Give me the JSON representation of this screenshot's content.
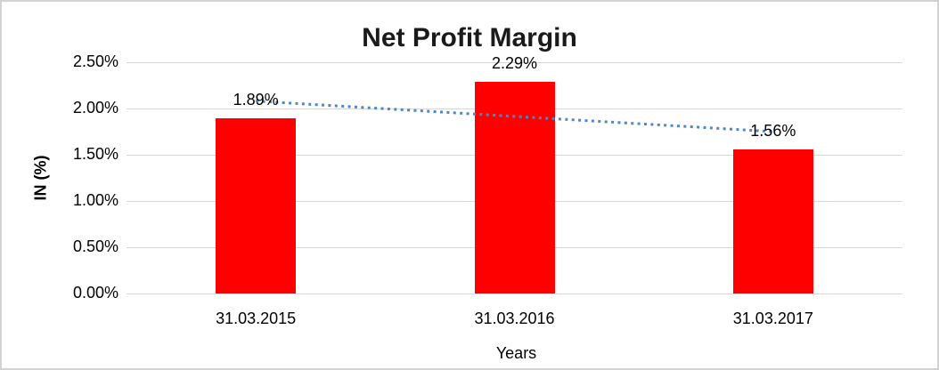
{
  "chart_data": {
    "type": "bar",
    "title": "Net Profit Margin",
    "categories": [
      "31.03.2015",
      "31.03.2016",
      "31.03.2017"
    ],
    "values": [
      1.89,
      2.29,
      1.56
    ],
    "data_labels": [
      "1.89%",
      "2.29%",
      "1.56%"
    ],
    "xlabel": "Years",
    "ylabel": "IN (%)",
    "y_ticks": [
      "0.00%",
      "0.50%",
      "1.00%",
      "1.50%",
      "2.00%",
      "2.50%"
    ],
    "y_tick_values": [
      0,
      0.5,
      1.0,
      1.5,
      2.0,
      2.5
    ],
    "ylim": [
      0,
      2.5
    ],
    "grid": true,
    "legend": "none",
    "bar_color": "#ff0000",
    "trendline": {
      "style": "dotted",
      "color": "#4e86c8",
      "start_pct": 2.08,
      "end_pct": 1.75
    }
  }
}
